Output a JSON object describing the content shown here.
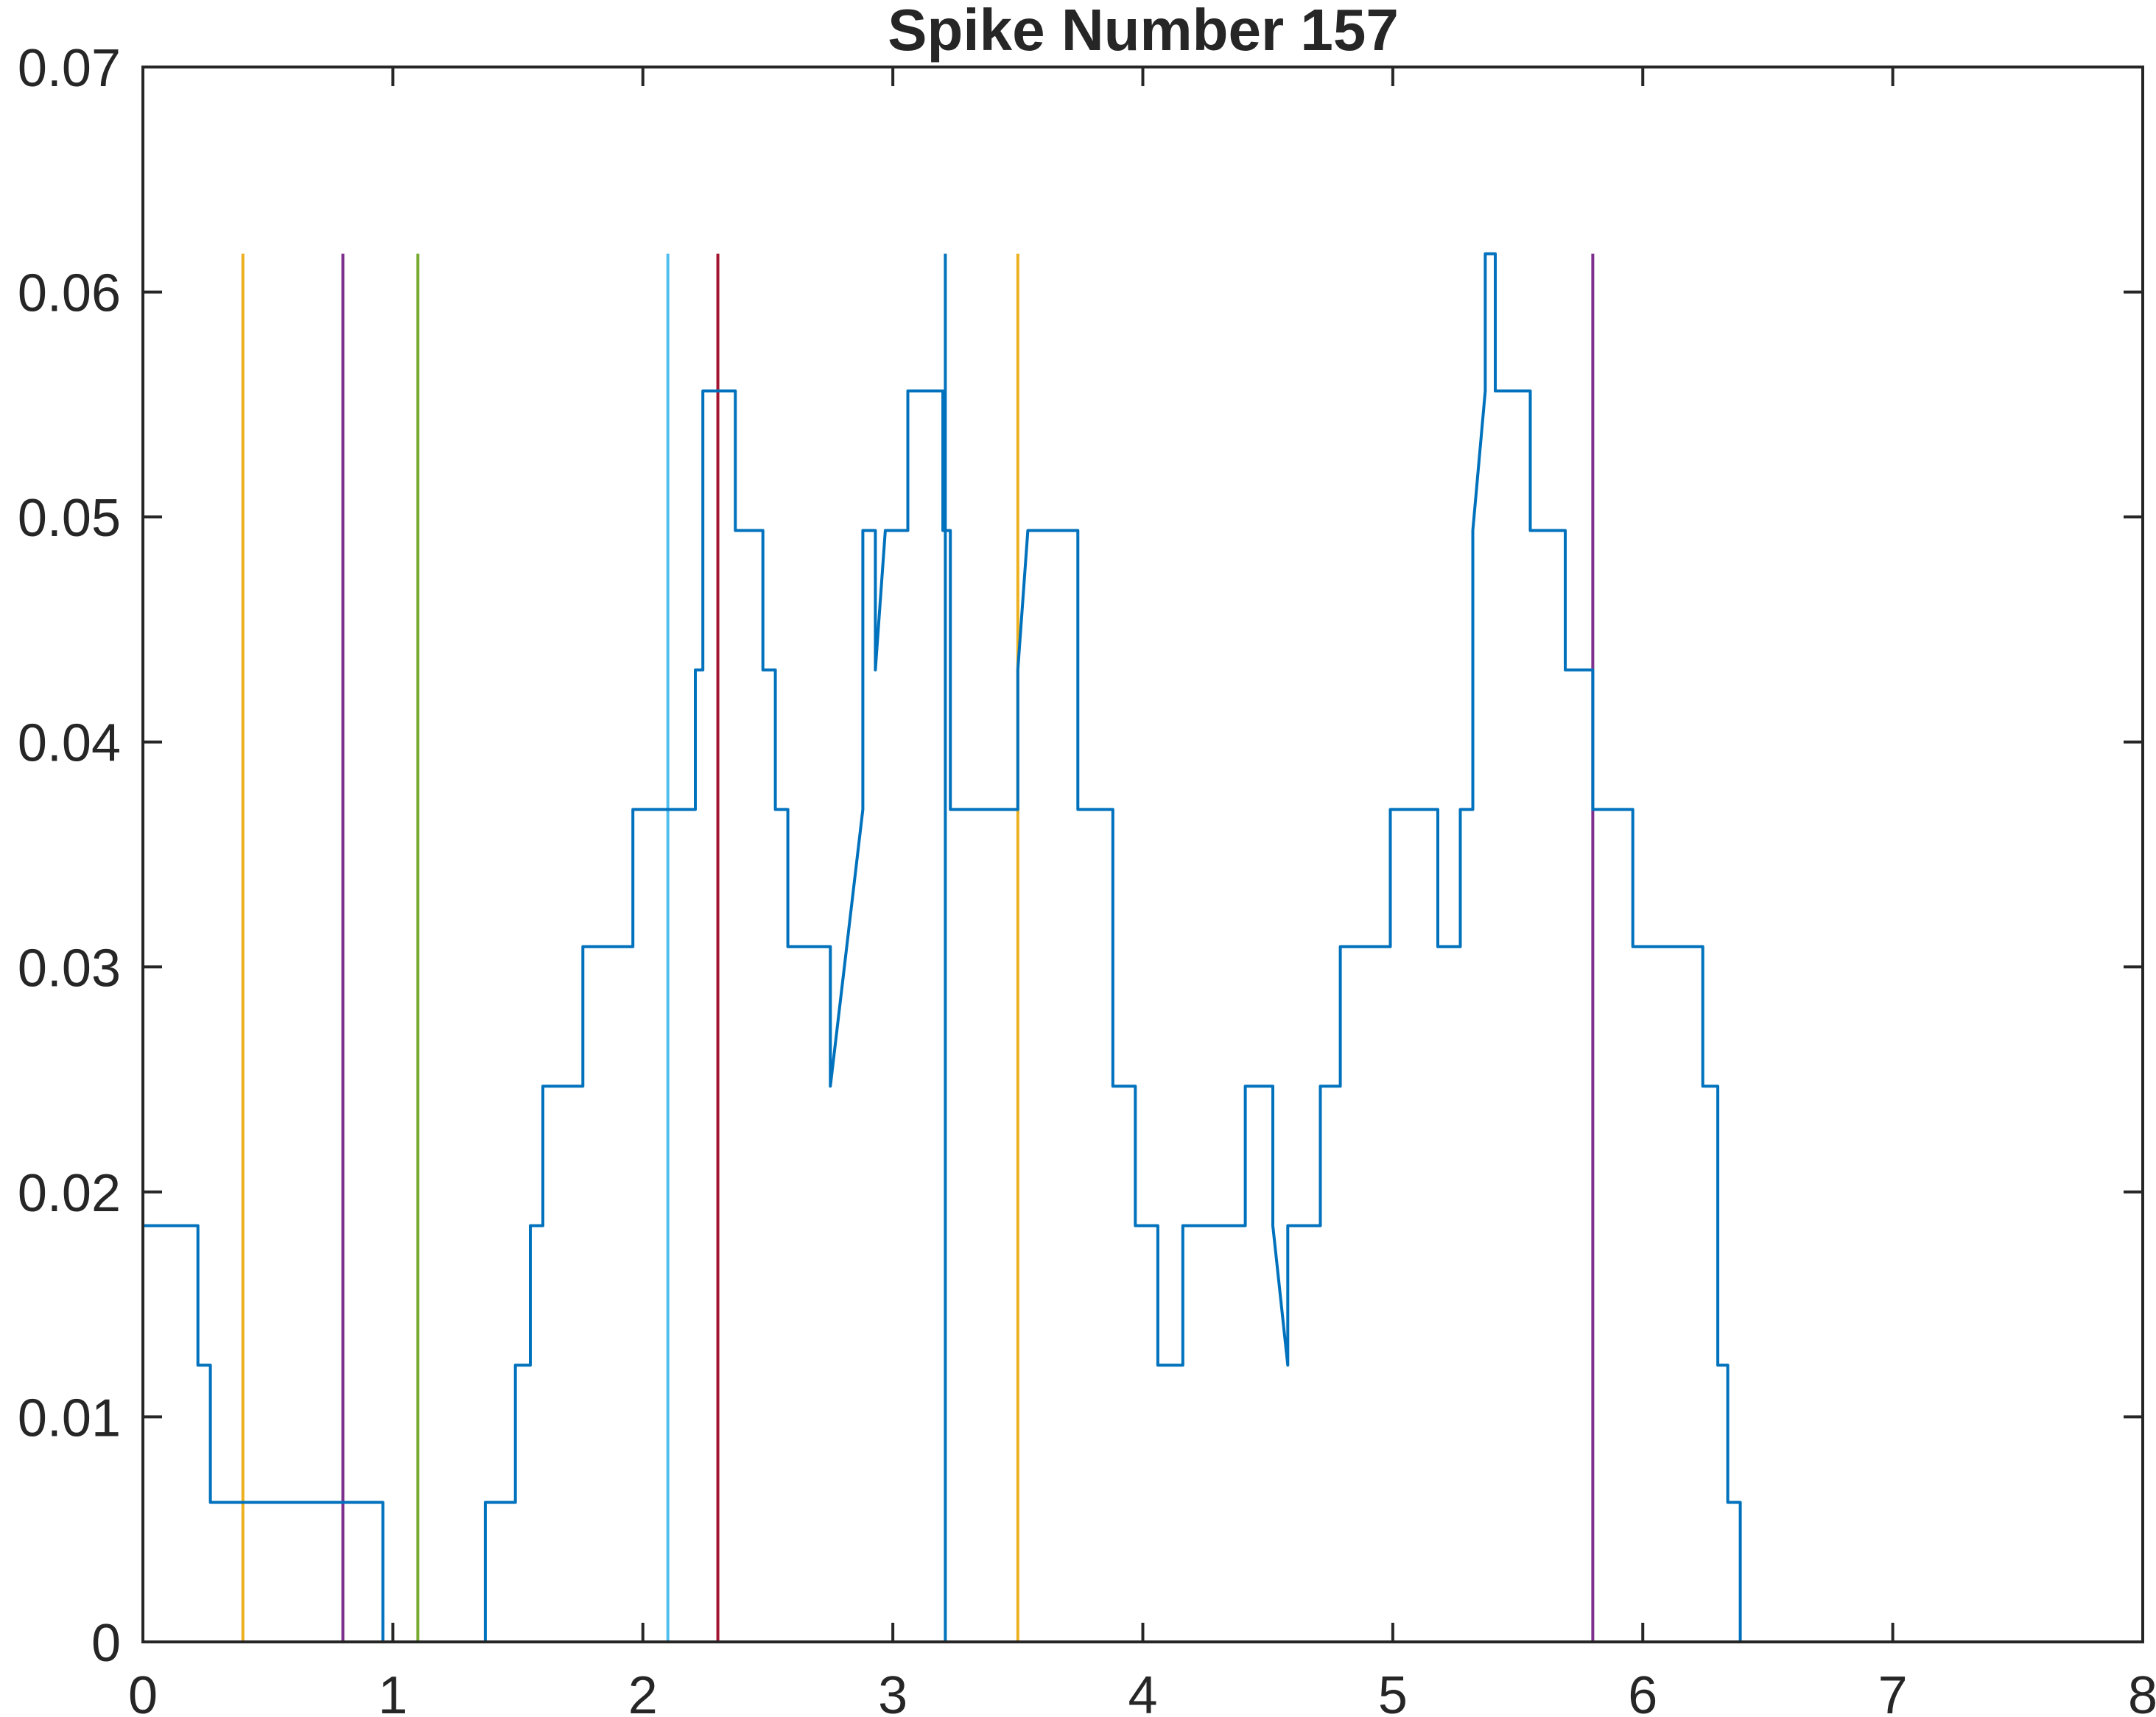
{
  "chart_data": {
    "type": "line",
    "title": "Spike Number 157",
    "xlabel": "",
    "ylabel": "",
    "xlim": [
      0,
      8
    ],
    "ylim": [
      0,
      0.07
    ],
    "grid": false,
    "x_ticks": [
      "0",
      "1",
      "2",
      "3",
      "4",
      "5",
      "6",
      "7",
      "8"
    ],
    "y_ticks": [
      "0",
      "0.01",
      "0.02",
      "0.03",
      "0.04",
      "0.05",
      "0.06",
      "0.07"
    ],
    "series": [
      {
        "color": "#0072BD",
        "style": "step",
        "x": [
          0,
          0.22,
          0.22,
          0.27,
          0.27,
          0.29,
          0.29,
          0.96,
          0.96,
          1.37,
          1.37,
          1.49,
          1.49,
          1.55,
          1.55,
          1.6,
          1.6,
          1.64,
          1.64,
          1.76,
          1.76,
          1.79,
          1.79,
          1.96,
          1.96,
          1.99,
          1.99,
          2.21,
          2.21,
          2.24,
          2.24,
          2.29,
          2.29,
          2.37,
          2.37,
          2.48,
          2.48,
          2.53,
          2.53,
          2.58,
          2.58,
          2.75,
          2.75,
          2.88,
          2.88,
          2.93,
          2.93,
          2.97,
          2.97,
          3.06,
          3.06,
          3.2,
          3.2,
          3.23,
          3.23,
          3.5,
          3.5,
          3.54,
          3.54,
          3.74,
          3.74,
          3.88,
          3.88,
          3.97,
          3.97,
          4.06,
          4.06,
          4.16,
          4.16,
          4.41,
          4.41,
          4.52,
          4.52,
          4.58,
          4.58,
          4.71,
          4.71,
          4.79,
          4.79,
          4.99,
          4.99,
          5.18,
          5.18,
          5.27,
          5.27,
          5.32,
          5.32,
          5.37,
          5.37,
          5.41,
          5.41,
          5.55,
          5.55,
          5.69,
          5.69,
          5.8,
          5.8,
          5.96,
          5.96,
          6.24,
          6.24,
          6.3,
          6.3,
          6.34,
          6.34,
          6.39,
          6.39,
          7.8
        ],
        "y": [
          0.0185,
          0.0185,
          0.0123,
          0.0123,
          0.0062,
          0.0062,
          0.0062,
          0.0062,
          0,
          0,
          0.0062,
          0.0062,
          0.0123,
          0.0123,
          0.0185,
          0.0185,
          0.0247,
          0.0247,
          0.0247,
          0.0247,
          0.0309,
          0.0309,
          0.0309,
          0.0309,
          0.037,
          0.037,
          0.037,
          0.037,
          0.0432,
          0.0432,
          0.0556,
          0.0556,
          0.0556,
          0.0556,
          0.0494,
          0.0494,
          0.0432,
          0.0432,
          0.037,
          0.037,
          0.0309,
          0.0309,
          0.0247,
          0.037,
          0.0494,
          0.0494,
          0.0432,
          0.0494,
          0.0494,
          0.0494,
          0.0556,
          0.0556,
          0.0494,
          0.0494,
          0.037,
          0.037,
          0.0432,
          0.0494,
          0.0494,
          0.0494,
          0.037,
          0.037,
          0.0247,
          0.0247,
          0.0185,
          0.0185,
          0.0123,
          0.0123,
          0.0185,
          0.0185,
          0.0247,
          0.0247,
          0.0185,
          0.0123,
          0.0185,
          0.0185,
          0.0247,
          0.0247,
          0.0309,
          0.0309,
          0.037,
          0.037,
          0.0309,
          0.0309,
          0.037,
          0.037,
          0.0494,
          0.0556,
          0.0617,
          0.0617,
          0.0556,
          0.0556,
          0.0494,
          0.0494,
          0.0432,
          0.0432,
          0.037,
          0.037,
          0.0309,
          0.0309,
          0.0247,
          0.0247,
          0.0123,
          0.0123,
          0.0062,
          0.0062,
          0,
          0
        ]
      }
    ],
    "vertical_lines": [
      {
        "x": 0.0,
        "y_top": 0.0617,
        "color": "#D95319"
      },
      {
        "x": 0.4,
        "y_top": 0.0617,
        "color": "#EDB120"
      },
      {
        "x": 0.8,
        "y_top": 0.0617,
        "color": "#7E2F8E"
      },
      {
        "x": 1.1,
        "y_top": 0.0617,
        "color": "#77AC30"
      },
      {
        "x": 2.1,
        "y_top": 0.0617,
        "color": "#4DBEEE"
      },
      {
        "x": 2.3,
        "y_top": 0.0617,
        "color": "#A2142F"
      },
      {
        "x": 3.21,
        "y_top": 0.0617,
        "color": "#0072BD"
      },
      {
        "x": 3.5,
        "y_top": 0.0617,
        "color": "#EDB120"
      },
      {
        "x": 5.8,
        "y_top": 0.0617,
        "color": "#7E2F8E"
      }
    ]
  }
}
